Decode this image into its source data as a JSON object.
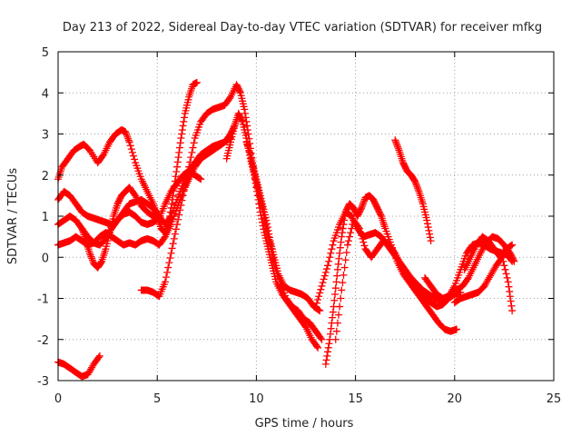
{
  "chart_data": {
    "type": "scatter",
    "title": "Day 213 of 2022, Sidereal Day-to-day VTEC variation (SDTVAR) for receiver mfkg",
    "xlabel": "GPS time / hours",
    "ylabel": "SDTVAR / TECUs",
    "xlim": [
      0,
      25
    ],
    "ylim": [
      -3,
      5
    ],
    "xticks": [
      "0",
      "5",
      "10",
      "15",
      "20",
      "25"
    ],
    "yticks": [
      "-3",
      "-2",
      "-1",
      "0",
      "1",
      "2",
      "3",
      "4",
      "5"
    ],
    "grid": true,
    "marker": "+",
    "series_color": "#ff0000",
    "segments": [
      {
        "x": [
          0.0,
          0.3,
          0.6,
          0.9,
          1.2,
          1.5,
          1.8,
          2.1
        ],
        "y": [
          -2.55,
          -2.6,
          -2.7,
          -2.8,
          -2.9,
          -2.85,
          -2.6,
          -2.4
        ]
      },
      {
        "x": [
          0.0,
          0.2,
          0.5,
          0.8,
          1.1,
          1.3,
          1.6,
          2.0,
          2.3,
          2.6,
          2.9,
          3.2,
          3.4,
          3.6,
          3.9,
          4.2,
          4.5,
          4.8,
          5.0,
          5.2,
          5.4,
          5.6,
          5.8,
          6.0,
          6.2,
          6.4,
          6.6,
          6.8,
          7.0
        ],
        "y": [
          1.9,
          2.2,
          2.4,
          2.6,
          2.7,
          2.75,
          2.6,
          2.3,
          2.5,
          2.8,
          3.0,
          3.1,
          3.05,
          2.8,
          2.3,
          1.9,
          1.6,
          1.3,
          1.0,
          0.7,
          0.6,
          0.9,
          1.5,
          2.2,
          2.9,
          3.5,
          3.9,
          4.2,
          4.25
        ]
      },
      {
        "x": [
          0.0,
          0.3,
          0.6,
          0.9,
          1.2,
          1.5,
          1.8,
          2.1,
          2.4,
          2.7,
          3.0,
          3.3,
          3.6,
          3.9,
          4.2,
          4.5,
          4.8,
          5.1,
          5.4,
          5.7,
          6.0,
          6.3,
          6.6,
          6.9,
          7.2,
          7.5,
          7.8,
          8.1,
          8.4,
          8.7,
          8.9
        ],
        "y": [
          0.3,
          0.35,
          0.4,
          0.5,
          0.4,
          0.3,
          0.35,
          0.5,
          0.6,
          0.5,
          0.4,
          0.3,
          0.35,
          0.3,
          0.4,
          0.45,
          0.4,
          0.3,
          0.5,
          0.8,
          1.2,
          1.6,
          1.9,
          2.2,
          2.4,
          2.5,
          2.6,
          2.7,
          2.8,
          3.0,
          3.2
        ]
      },
      {
        "x": [
          0.0,
          0.3,
          0.6,
          0.9,
          1.2,
          1.5,
          1.8,
          2.1,
          2.4,
          2.7,
          3.0,
          3.3,
          3.6,
          3.9,
          4.2,
          4.5,
          4.8,
          5.1,
          5.4,
          5.7,
          6.0,
          6.3,
          6.6,
          6.9,
          7.2,
          7.5,
          7.8,
          8.1,
          8.4,
          8.7
        ],
        "y": [
          1.4,
          1.6,
          1.5,
          1.3,
          1.1,
          1.0,
          0.95,
          0.9,
          0.85,
          0.8,
          0.9,
          1.1,
          1.3,
          1.35,
          1.4,
          1.3,
          1.2,
          1.0,
          0.8,
          1.0,
          1.4,
          1.8,
          2.1,
          2.3,
          2.5,
          2.6,
          2.7,
          2.75,
          2.8,
          2.9
        ]
      },
      {
        "x": [
          0.0,
          0.3,
          0.6,
          0.9,
          1.2,
          1.5,
          1.8,
          2.1,
          2.4,
          2.7,
          3.0,
          3.3,
          3.6,
          3.9,
          4.2,
          4.5,
          4.8,
          5.1,
          5.4,
          5.7,
          6.0,
          6.3,
          6.6,
          6.9,
          7.2
        ],
        "y": [
          0.8,
          0.9,
          1.0,
          0.9,
          0.7,
          0.5,
          0.35,
          0.3,
          0.45,
          0.7,
          0.9,
          1.05,
          1.1,
          1.0,
          0.85,
          0.8,
          0.85,
          0.95,
          1.3,
          1.6,
          1.8,
          2.0,
          2.1,
          2.0,
          1.9
        ]
      },
      {
        "x": [
          1.2,
          1.4,
          1.6,
          1.8,
          2.0,
          2.2,
          2.4,
          2.6,
          2.8,
          3.0,
          3.2,
          3.4,
          3.6,
          3.9,
          4.2,
          4.5,
          4.8,
          5.0
        ],
        "y": [
          0.7,
          0.4,
          0.1,
          -0.15,
          -0.25,
          -0.1,
          0.2,
          0.6,
          1.0,
          1.3,
          1.5,
          1.6,
          1.7,
          1.5,
          1.25,
          1.1,
          1.0,
          0.95
        ]
      },
      {
        "x": [
          4.2,
          4.5,
          4.8,
          5.1,
          5.4,
          5.7,
          6.0,
          6.3,
          6.6,
          6.9,
          7.2,
          7.5,
          7.8,
          8.1,
          8.4,
          8.7,
          9.0,
          9.2,
          9.4,
          9.6,
          9.8,
          10.0,
          10.2,
          10.4,
          10.6,
          10.8,
          11.0,
          11.3,
          11.6,
          11.9,
          12.2,
          12.5,
          12.8,
          13.1
        ],
        "y": [
          -0.8,
          -0.8,
          -0.85,
          -0.95,
          -0.6,
          0.1,
          0.8,
          1.5,
          2.2,
          2.9,
          3.3,
          3.5,
          3.6,
          3.65,
          3.7,
          3.9,
          4.2,
          4.0,
          3.6,
          3.0,
          2.3,
          1.7,
          1.1,
          0.6,
          0.2,
          -0.2,
          -0.6,
          -0.9,
          -1.1,
          -1.3,
          -1.5,
          -1.7,
          -2.0,
          -2.2
        ]
      },
      {
        "x": [
          8.5,
          8.7,
          8.9,
          9.1,
          9.3,
          9.5,
          9.7,
          9.9,
          10.1,
          10.3,
          10.5,
          10.7,
          10.9,
          11.2,
          11.5,
          11.8,
          12.1,
          12.4,
          12.7,
          13.0,
          13.3
        ],
        "y": [
          2.4,
          2.8,
          3.2,
          3.5,
          3.3,
          2.9,
          2.4,
          2.0,
          1.6,
          1.2,
          0.7,
          0.3,
          -0.2,
          -0.6,
          -1.0,
          -1.2,
          -1.3,
          -1.5,
          -1.6,
          -1.8,
          -2.0
        ]
      },
      {
        "x": [
          9.5,
          9.7,
          9.9,
          10.1,
          10.3,
          10.5,
          10.7,
          10.9,
          11.1,
          11.4,
          11.7,
          12.0,
          12.3,
          12.6,
          12.9,
          13.2
        ],
        "y": [
          2.8,
          2.5,
          2.1,
          1.7,
          1.3,
          0.9,
          0.4,
          0.0,
          -0.4,
          -0.7,
          -0.8,
          -0.85,
          -0.9,
          -1.0,
          -1.2,
          -1.3
        ]
      },
      {
        "x": [
          13.5,
          13.7,
          13.9,
          14.1,
          14.3,
          14.5,
          14.7,
          14.9,
          15.1,
          15.3,
          15.5,
          15.7,
          15.9,
          16.1,
          16.3,
          16.5,
          16.8,
          17.1,
          17.4,
          17.7,
          18.0,
          18.3,
          18.6,
          18.9,
          19.2,
          19.5,
          19.8,
          20.1
        ],
        "y": [
          -2.6,
          -2.0,
          -1.2,
          -0.3,
          0.5,
          1.1,
          1.3,
          1.2,
          1.0,
          1.2,
          1.45,
          1.5,
          1.4,
          1.2,
          1.0,
          0.7,
          0.3,
          -0.1,
          -0.4,
          -0.6,
          -0.8,
          -1.0,
          -1.2,
          -1.4,
          -1.6,
          -1.75,
          -1.8,
          -1.75
        ]
      },
      {
        "x": [
          13.0,
          13.3,
          13.6,
          13.9,
          14.2,
          14.5,
          14.8,
          15.1,
          15.4,
          15.7,
          16.0,
          16.3,
          16.6,
          16.9,
          17.2,
          17.5,
          17.8,
          18.1,
          18.4,
          18.7,
          19.0,
          19.3,
          19.6
        ],
        "y": [
          -1.2,
          -0.7,
          -0.2,
          0.4,
          0.8,
          1.1,
          1.0,
          0.7,
          0.5,
          0.55,
          0.6,
          0.5,
          0.3,
          0.1,
          -0.1,
          -0.3,
          -0.5,
          -0.65,
          -0.8,
          -0.9,
          -1.0,
          -1.05,
          -1.0
        ]
      },
      {
        "x": [
          14.0,
          14.3,
          14.6,
          14.9,
          15.2,
          15.5,
          15.8,
          16.1,
          16.4,
          16.7,
          17.0,
          17.3,
          17.6,
          17.9,
          18.2,
          18.5,
          18.8,
          19.1,
          19.4,
          19.7,
          20.0,
          20.3
        ],
        "y": [
          -2.0,
          -0.8,
          0.3,
          0.9,
          0.7,
          0.2,
          0.0,
          0.2,
          0.4,
          0.3,
          0.1,
          -0.2,
          -0.4,
          -0.6,
          -0.8,
          -1.0,
          -1.1,
          -1.2,
          -1.15,
          -1.0,
          -0.9,
          -0.85
        ]
      },
      {
        "x": [
          17.0,
          17.2,
          17.4,
          17.6,
          17.8,
          18.0,
          18.2,
          18.4,
          18.6,
          18.8
        ],
        "y": [
          2.85,
          2.6,
          2.3,
          2.1,
          2.0,
          1.85,
          1.6,
          1.3,
          0.9,
          0.4
        ]
      },
      {
        "x": [
          18.5,
          18.8,
          19.1,
          19.4,
          19.7,
          20.0,
          20.3,
          20.6,
          20.9,
          21.2,
          21.5,
          21.8,
          22.1,
          22.4,
          22.7,
          22.9
        ],
        "y": [
          -0.5,
          -0.7,
          -0.9,
          -1.0,
          -0.95,
          -0.7,
          -0.3,
          0.1,
          0.3,
          0.35,
          0.3,
          0.2,
          0.15,
          0.1,
          0.05,
          -0.1
        ]
      },
      {
        "x": [
          19.5,
          19.8,
          20.1,
          20.4,
          20.7,
          21.0,
          21.3,
          21.6,
          21.9,
          22.2,
          22.5,
          22.8,
          23.0
        ],
        "y": [
          -1.0,
          -0.9,
          -0.8,
          -0.7,
          -0.5,
          -0.2,
          0.1,
          0.35,
          0.5,
          0.45,
          0.3,
          0.1,
          -0.1
        ]
      },
      {
        "x": [
          20.0,
          20.3,
          20.6,
          20.9,
          21.2,
          21.5,
          21.8,
          22.1,
          22.4,
          22.7,
          22.9
        ],
        "y": [
          -1.1,
          -1.0,
          -0.95,
          -0.9,
          -0.85,
          -0.7,
          -0.45,
          -0.2,
          0.0,
          -0.6,
          -1.3
        ]
      },
      {
        "x": [
          20.5,
          20.8,
          21.1,
          21.4,
          21.7,
          22.0,
          22.3,
          22.6,
          22.9
        ],
        "y": [
          -0.3,
          0.0,
          0.3,
          0.5,
          0.4,
          0.2,
          0.0,
          0.2,
          0.3
        ]
      }
    ]
  }
}
